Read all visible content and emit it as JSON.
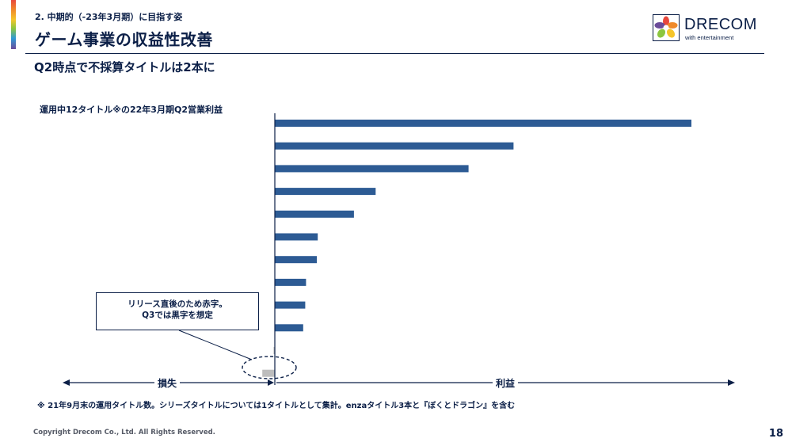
{
  "header": {
    "section_label": "2. 中期的（-23年3月期）に目指す姿",
    "title": "ゲーム事業の収益性改善",
    "logo": {
      "word": "DRECOM",
      "tagline": "with entertainment"
    }
  },
  "subheading": "Q2時点で不採算タイトルは2本に",
  "chart_title": "運用中12タイトル※の22年3月期Q2営業利益",
  "callout": {
    "line1": "リリース直後のため赤字。",
    "line2": "Q3では黒字を想定"
  },
  "axis_labels": {
    "loss": "損失",
    "profit": "利益"
  },
  "footnote": "※ 21年9月末の運用タイトル数。シリーズタイトルについては1タイトルとして集計。enzaタイトル3本と『ぼくとドラゴン』を含む",
  "footer": {
    "copyright": "Copyright Drecom Co., Ltd. All Rights Reserved.",
    "page_number": "18"
  },
  "colors": {
    "profit_bar": "#2d5b94",
    "loss_bar": "#bdbdbd",
    "text": "#0b1f47"
  },
  "chart_data": {
    "type": "bar",
    "orientation": "horizontal",
    "categories": [
      "",
      "",
      "",
      "",
      "",
      "",
      "",
      "",
      "",
      "",
      "",
      ""
    ],
    "values": [
      100,
      57.3,
      46.5,
      24.2,
      19,
      10.3,
      10.1,
      7.5,
      7.3,
      6.8,
      -0.3,
      -3
    ],
    "xlabel": "",
    "ylabel": "",
    "xlim": [
      -60,
      110
    ],
    "grid": false
  }
}
